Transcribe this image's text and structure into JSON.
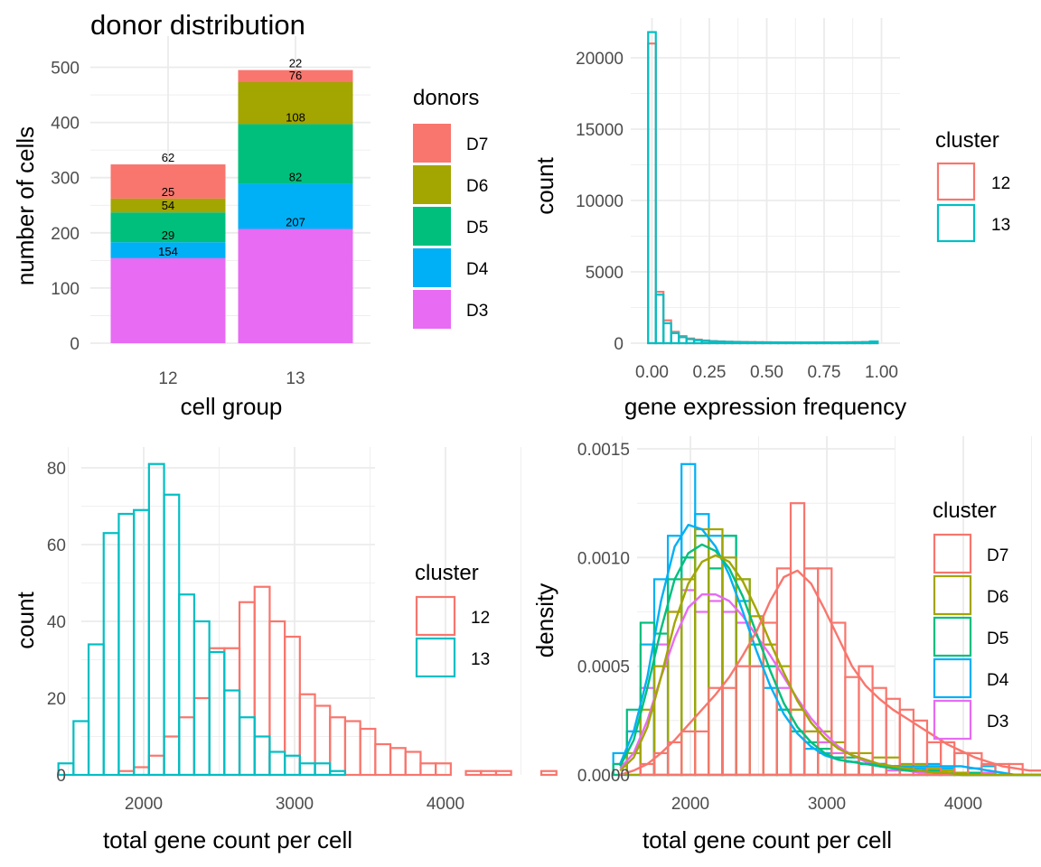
{
  "colors": {
    "D7": "#F8766D",
    "D6": "#A3A500",
    "D5": "#00BF7D",
    "D4": "#00B0F6",
    "D3": "#E76BF3",
    "c12": "#F8766D",
    "c13": "#00BFC4",
    "grid": "#EBEBEB",
    "tick_text": "#4D4D4D"
  },
  "chart_data": [
    {
      "id": "donor",
      "type": "bar",
      "stacked": true,
      "title": "donor distribution",
      "xlabel": "cell group",
      "ylabel": "number of cells",
      "categories": [
        "12",
        "13"
      ],
      "ylim": [
        0,
        500
      ],
      "yticks": [
        0,
        100,
        200,
        300,
        400,
        500
      ],
      "legend_title": "donors",
      "legend_position": "right",
      "grid": true,
      "series": [
        {
          "name": "D3",
          "values": [
            154,
            207
          ],
          "labels": [
            "154",
            "207"
          ]
        },
        {
          "name": "D4",
          "values": [
            29,
            82
          ],
          "labels": [
            "29",
            "82"
          ]
        },
        {
          "name": "D5",
          "values": [
            54,
            108
          ],
          "labels": [
            "54",
            "108"
          ]
        },
        {
          "name": "D6",
          "values": [
            25,
            76
          ],
          "labels": [
            "25",
            "76"
          ]
        },
        {
          "name": "D7",
          "values": [
            62,
            22
          ],
          "labels": [
            "62",
            "22"
          ]
        }
      ]
    },
    {
      "id": "freq",
      "type": "bar",
      "xlabel": "gene expression frequency",
      "ylabel": "count",
      "xlim": [
        0,
        1
      ],
      "ylim": [
        0,
        21800
      ],
      "xticks": [
        "0.00",
        "0.25",
        "0.50",
        "0.75",
        "1.00"
      ],
      "yticks": [
        0,
        5000,
        10000,
        15000,
        20000
      ],
      "legend_title": "cluster",
      "legend_position": "right",
      "grid": true,
      "bin_edges": [
        -0.0167,
        0.0167,
        0.05,
        0.0833,
        0.1167,
        0.15,
        0.1833,
        0.2167,
        0.25,
        0.2833,
        0.3167,
        0.35,
        0.3833,
        0.4167,
        0.45,
        0.4833,
        0.5167,
        0.55,
        0.5833,
        0.6167,
        0.65,
        0.6833,
        0.7167,
        0.75,
        0.7833,
        0.8167,
        0.85,
        0.8833,
        0.9167,
        0.95,
        0.9833,
        1.0167
      ],
      "series": [
        {
          "name": "12",
          "values": [
            21000,
            3600,
            1600,
            800,
            500,
            330,
            250,
            190,
            150,
            125,
            105,
            95,
            85,
            75,
            70,
            65,
            60,
            55,
            55,
            50,
            50,
            50,
            50,
            55,
            55,
            60,
            65,
            70,
            80,
            110
          ]
        },
        {
          "name": "13",
          "values": [
            21800,
            3400,
            1400,
            700,
            420,
            280,
            210,
            160,
            130,
            110,
            95,
            85,
            75,
            68,
            62,
            58,
            55,
            50,
            50,
            48,
            47,
            47,
            48,
            50,
            52,
            55,
            60,
            65,
            75,
            120
          ]
        }
      ]
    },
    {
      "id": "counts",
      "type": "bar",
      "xlabel": "total gene count per cell",
      "ylabel": "count",
      "xlim": [
        1333,
        4870
      ],
      "ylim": [
        0,
        85
      ],
      "xticks": [
        2000,
        3000,
        4000
      ],
      "yticks": [
        0,
        20,
        40,
        60,
        80
      ],
      "legend_title": "cluster",
      "legend_position": "right",
      "grid": true,
      "bin_edges": [
        1435,
        1535,
        1635,
        1735,
        1835,
        1935,
        2035,
        2135,
        2235,
        2335,
        2435,
        2535,
        2635,
        2735,
        2835,
        2935,
        3035,
        3135,
        3235,
        3335,
        3435,
        3535,
        3635,
        3735,
        3835,
        3935,
        4035,
        4135,
        4235,
        4335,
        4435,
        4535,
        4635,
        4735
      ],
      "series": [
        {
          "name": "12",
          "values": [
            0,
            0,
            0,
            0,
            1,
            2,
            5,
            10,
            15,
            20,
            33,
            33,
            45,
            49,
            40,
            36,
            21,
            18,
            15,
            14,
            12,
            8,
            7,
            6,
            3,
            3,
            0,
            1,
            1,
            1,
            0,
            0,
            1
          ]
        },
        {
          "name": "13",
          "values": [
            3,
            14,
            34,
            63,
            68,
            69,
            81,
            73,
            47,
            40,
            32,
            22,
            15,
            10,
            6,
            5,
            3,
            3,
            1,
            0,
            0,
            0,
            0,
            0,
            0,
            0,
            0,
            0,
            0,
            0,
            0,
            0,
            0
          ]
        }
      ]
    },
    {
      "id": "density",
      "type": "bar",
      "xlabel": "total gene count per cell",
      "ylabel": "density",
      "xlim": [
        1333,
        4870
      ],
      "ylim": [
        0,
        0.0015
      ],
      "xticks": [
        2000,
        3000,
        4000
      ],
      "yticks": [
        "0.0000",
        "0.0005",
        "0.0010",
        "0.0015"
      ],
      "legend_title": "cluster",
      "legend_position": "right",
      "grid": true,
      "bin_edges": [
        1435,
        1535,
        1635,
        1735,
        1835,
        1935,
        2035,
        2135,
        2235,
        2335,
        2435,
        2535,
        2635,
        2735,
        2835,
        2935,
        3035,
        3135,
        3235,
        3335,
        3435,
        3535,
        3635,
        3735,
        3835,
        3935,
        4035,
        4135,
        4235,
        4335,
        4435,
        4535,
        4635,
        4735
      ],
      "series": [
        {
          "name": "D3",
          "values": [
            5e-05,
            0.0002,
            0.0004,
            0.0006,
            0.00075,
            0.00085,
            0.00075,
            0.0008,
            0.00075,
            0.0007,
            0.0006,
            0.0006,
            0.0004,
            0.0003,
            0.0002,
            0.00015,
            0.0001,
            0.0001,
            5e-05,
            5e-05,
            2e-05,
            2e-05,
            2e-05,
            2e-05,
            1e-05,
            1e-05,
            1e-05,
            1e-05,
            0,
            0,
            0,
            0,
            0
          ],
          "curve": [
            3e-05,
            0.0001,
            0.00025,
            0.00045,
            0.00063,
            0.00077,
            0.00083,
            0.00083,
            0.0008,
            0.00073,
            0.00064,
            0.00055,
            0.00045,
            0.00035,
            0.00026,
            0.00019,
            0.00013,
            9e-05,
            6e-05,
            4e-05,
            3e-05,
            2e-05,
            1e-05,
            1e-05,
            1e-05,
            0,
            0,
            0,
            0,
            0,
            0,
            0,
            0
          ]
        },
        {
          "name": "D4",
          "values": [
            0.0001,
            0.0002,
            0.0006,
            0.0009,
            0.0011,
            0.00143,
            0.0012,
            0.0011,
            0.0011,
            0.0008,
            0.0005,
            0.0004,
            0.0003,
            0.0002,
            0.00012,
            0.0001,
            8e-05,
            6e-05,
            5e-05,
            5e-05,
            4e-05,
            3e-05,
            3e-05,
            5e-05,
            3e-05,
            0.0001,
            3e-05,
            4e-05,
            0,
            0,
            0,
            0,
            0
          ],
          "curve": [
            5e-05,
            0.0002,
            0.00045,
            0.0008,
            0.00105,
            0.00115,
            0.00113,
            0.00105,
            0.00092,
            0.00075,
            0.00057,
            0.00041,
            0.00028,
            0.00019,
            0.00013,
            9e-05,
            7e-05,
            6e-05,
            5e-05,
            5e-05,
            4e-05,
            4e-05,
            4e-05,
            4e-05,
            4e-05,
            4e-05,
            3e-05,
            2e-05,
            1e-05,
            0,
            0,
            0,
            0
          ]
        },
        {
          "name": "D5",
          "values": [
            5e-05,
            0.0003,
            0.0007,
            0.00065,
            0.0009,
            0.001,
            0.0011,
            0.00095,
            0.0011,
            0.0009,
            0.0006,
            0.0005,
            0.0003,
            0.0002,
            0.00015,
            0.00012,
            8e-05,
            8e-05,
            5e-05,
            5e-05,
            4e-05,
            3e-05,
            2e-05,
            2e-05,
            1e-05,
            1e-05,
            1e-05,
            0,
            0,
            0,
            0,
            0,
            0
          ],
          "curve": [
            4e-05,
            0.00016,
            0.0004,
            0.00067,
            0.0009,
            0.00102,
            0.00106,
            0.00103,
            0.00095,
            0.00082,
            0.00065,
            0.00048,
            0.00033,
            0.00022,
            0.00015,
            0.0001,
            7e-05,
            6e-05,
            5e-05,
            4e-05,
            3e-05,
            2e-05,
            2e-05,
            1e-05,
            1e-05,
            0,
            0,
            0,
            0,
            0,
            0,
            0,
            0
          ]
        },
        {
          "name": "D6",
          "values": [
            0,
            0.0001,
            0.0003,
            0.0005,
            0.00075,
            0.0009,
            0.00113,
            0.00113,
            0.001,
            0.0009,
            0.00073,
            0.0006,
            0.0005,
            0.0003,
            0.0002,
            0.0002,
            0.00015,
            0.0001,
            0.0001,
            8e-05,
            8e-05,
            5e-05,
            5e-05,
            3e-05,
            2e-05,
            1e-05,
            0,
            0,
            0,
            0,
            0,
            0,
            0
          ],
          "curve": [
            2e-05,
            8e-05,
            0.00022,
            0.00045,
            0.0007,
            0.00088,
            0.00098,
            0.00101,
            0.00098,
            0.00089,
            0.00076,
            0.00061,
            0.00047,
            0.00034,
            0.00024,
            0.00017,
            0.00012,
            9e-05,
            7e-05,
            5e-05,
            4e-05,
            3e-05,
            2e-05,
            1e-05,
            1e-05,
            0,
            0,
            0,
            0,
            0,
            0,
            0,
            0
          ]
        },
        {
          "name": "D7",
          "values": [
            0,
            0,
            5e-05,
            0.0001,
            0.00015,
            0.0002,
            0.0002,
            0.0004,
            0.0004,
            0.0005,
            0.0005,
            0.0007,
            0.00095,
            0.00125,
            0.00095,
            0.00095,
            0.0007,
            0.00045,
            0.0005,
            0.0004,
            0.00035,
            0.0003,
            0.00025,
            0.00015,
            0.00015,
            0.0001,
            0.0001,
            5e-05,
            5e-05,
            5e-05,
            0,
            0,
            0.0001
          ],
          "curve": [
            0,
            2e-05,
            5e-05,
            0.0001,
            0.00016,
            0.00023,
            0.0003,
            0.00037,
            0.00045,
            0.00055,
            0.00066,
            0.0008,
            0.00091,
            0.00094,
            0.00088,
            0.00076,
            0.00063,
            0.0005,
            0.00041,
            0.00035,
            0.0003,
            0.00026,
            0.00022,
            0.00018,
            0.00014,
            0.00011,
            8e-05,
            6e-05,
            4e-05,
            3e-05,
            2e-05,
            2e-05,
            1e-05
          ]
        }
      ]
    }
  ]
}
